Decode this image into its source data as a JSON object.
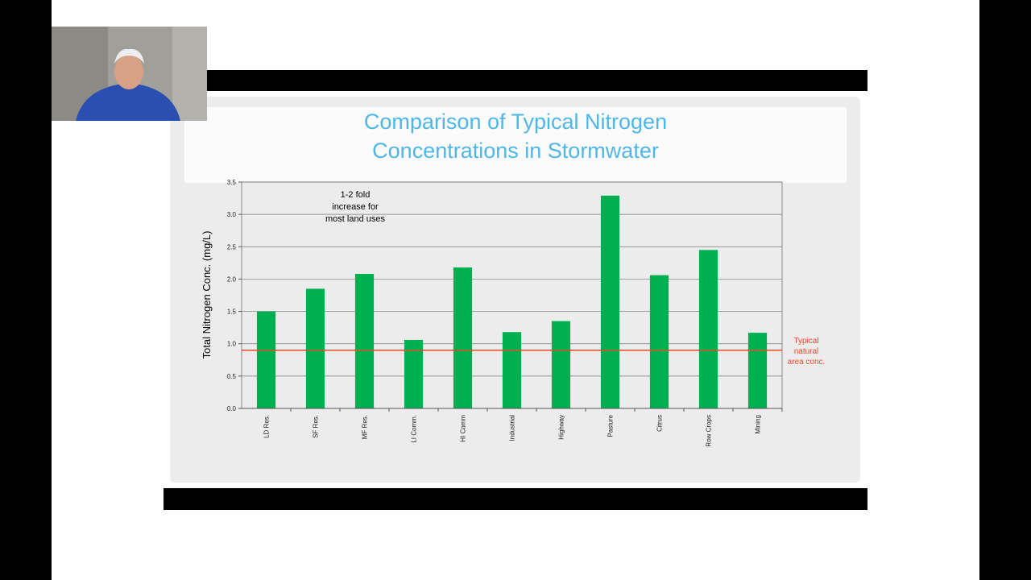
{
  "chart_data": {
    "type": "bar",
    "title": "Comparison of Typical Nitrogen Concentrations in Stormwater",
    "title_lines": [
      "Comparison of Typical Nitrogen",
      "Concentrations in Stormwater"
    ],
    "ylabel": "Total Nitrogen Conc. (mg/L)",
    "xlabel": "",
    "ylim": [
      0,
      3.5
    ],
    "yticks": [
      "0.0",
      "0.5",
      "1.0",
      "1.5",
      "2.0",
      "2.5",
      "3.0",
      "3.5"
    ],
    "categories": [
      "LD Res.",
      "SF Res.",
      "MF Res.",
      "LI Comm.",
      "HI Comm",
      "Industrial",
      "Highway",
      "Pasture",
      "Citrus",
      "Row Crops",
      "Mining"
    ],
    "values": [
      1.5,
      1.85,
      2.08,
      1.06,
      2.18,
      1.18,
      1.35,
      3.29,
      2.06,
      2.45,
      1.17
    ],
    "bar_color": "#00b050",
    "grid": true,
    "reference_line": {
      "value": 0.9,
      "color": "#e8492a",
      "label_lines": [
        "Typical",
        "natural",
        "area conc."
      ]
    },
    "annotation_lines": [
      "1-2  fold",
      "increase for",
      "most land  uses"
    ]
  },
  "colors": {
    "title": "#4fb7e8",
    "bars": "#00b050",
    "reference": "#e8492a"
  }
}
